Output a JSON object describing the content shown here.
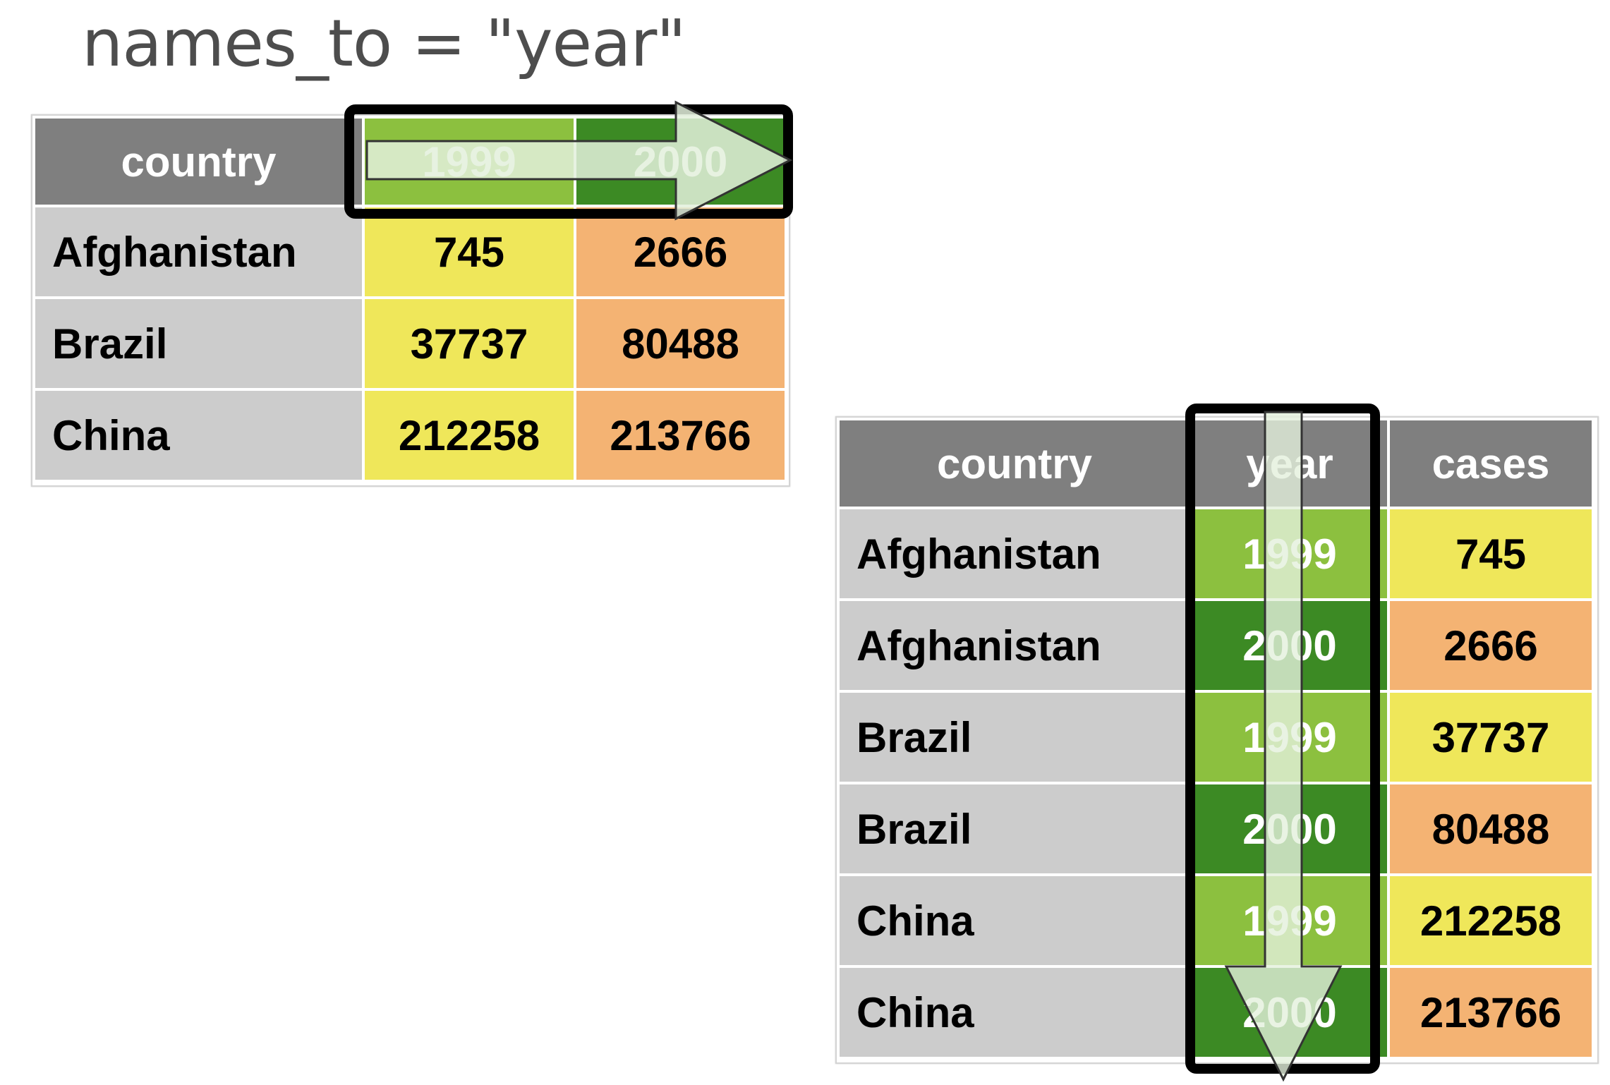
{
  "title": "names_to = \"year\"",
  "colors": {
    "header_bg": "#7f7f7f",
    "name_bg": "#cccccc",
    "year_1999_bg": "#8cc03f",
    "year_2000_bg": "#3c8a24",
    "value_1999_bg": "#efe75a",
    "value_2000_bg": "#f4b373",
    "highlight_border": "#000000",
    "arrow_fill": "#e3f0dc"
  },
  "wide_table": {
    "headers": [
      "country",
      "1999",
      "2000"
    ],
    "rows": [
      [
        "Afghanistan",
        "745",
        "2666"
      ],
      [
        "Brazil",
        "37737",
        "80488"
      ],
      [
        "China",
        "212258",
        "213766"
      ]
    ]
  },
  "long_table": {
    "headers": [
      "country",
      "year",
      "cases"
    ],
    "rows": [
      [
        "Afghanistan",
        "1999",
        "745"
      ],
      [
        "Afghanistan",
        "2000",
        "2666"
      ],
      [
        "Brazil",
        "1999",
        "37737"
      ],
      [
        "Brazil",
        "2000",
        "80488"
      ],
      [
        "China",
        "1999",
        "212258"
      ],
      [
        "China",
        "2000",
        "213766"
      ]
    ]
  }
}
